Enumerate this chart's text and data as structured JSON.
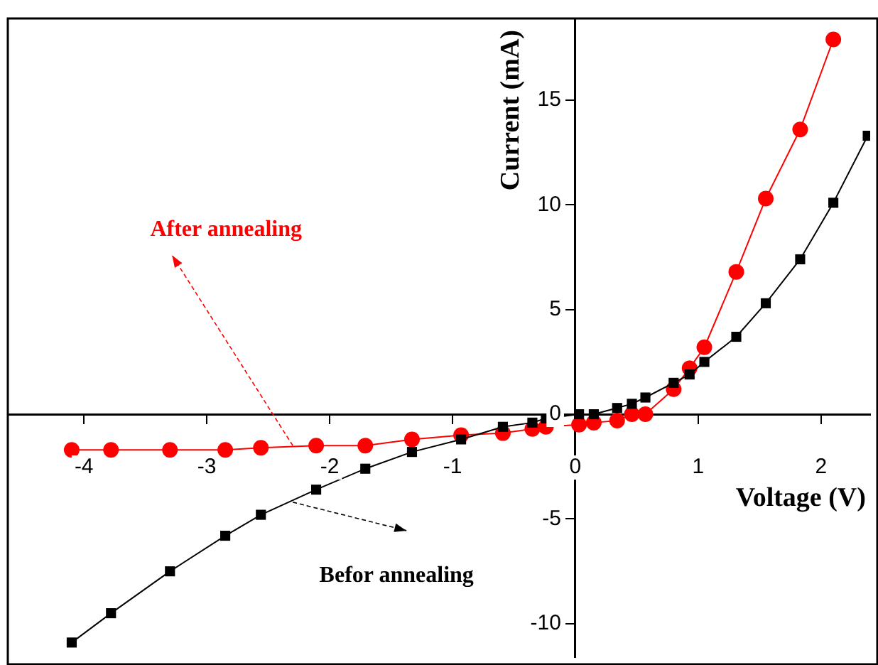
{
  "chart_data": {
    "type": "line",
    "xlabel": "Voltage (V)",
    "ylabel": "Current (mA)",
    "x": [
      -4.1,
      -3.78,
      -3.3,
      -2.85,
      -2.56,
      -2.11,
      -1.71,
      -1.33,
      -0.93,
      -0.59,
      -0.35,
      -0.24,
      0.03,
      0.15,
      0.34,
      0.46,
      0.57,
      0.8,
      0.93,
      1.05,
      1.31,
      1.55,
      1.83,
      2.1
    ],
    "series": [
      {
        "color": "#000000",
        "marker": "square",
        "x": [
          -4.1,
          -3.78,
          -3.3,
          -2.85,
          -2.56,
          -2.11,
          -1.71,
          -1.33,
          -0.93,
          -0.59,
          -0.35,
          -0.24,
          0.03,
          0.15,
          0.34,
          0.46,
          0.57,
          0.8,
          0.93,
          1.05,
          1.31,
          1.55,
          1.83,
          2.1,
          2.38
        ],
        "values": [
          -10.9,
          -9.5,
          -7.5,
          -5.8,
          -4.8,
          -3.6,
          -2.6,
          -1.8,
          -1.2,
          -0.6,
          -0.4,
          -0.2,
          0,
          0,
          0.3,
          0.5,
          0.8,
          1.5,
          1.9,
          2.5,
          3.7,
          5.3,
          7.4,
          10.1,
          13.3
        ]
      },
      {
        "color": "#ff0000",
        "marker": "circle",
        "values": [
          -1.7,
          -1.7,
          -1.7,
          -1.7,
          -1.6,
          -1.5,
          -1.5,
          -1.2,
          -1.0,
          -0.9,
          -0.7,
          -0.6,
          -0.5,
          -0.4,
          -0.3,
          0,
          0,
          1.2,
          2.2,
          3.2,
          6.8,
          10.3,
          13.6,
          17.9
        ]
      }
    ],
    "xlim": [
      -4.62,
      2.4
    ],
    "ylim": [
      -11.6,
      18.9
    ],
    "xticks": [
      -4,
      -3,
      -2,
      -1,
      0,
      1,
      2
    ],
    "yticks": [
      -10,
      -5,
      0,
      5,
      10,
      15
    ],
    "grid": false,
    "legend": false,
    "line_style": "solid",
    "annotations": [
      {
        "text": "Befor annealing",
        "x": -2.3,
        "y": -4.2
      },
      {
        "text": "After annealing",
        "x": -2.3,
        "y": -1.5
      }
    ]
  }
}
